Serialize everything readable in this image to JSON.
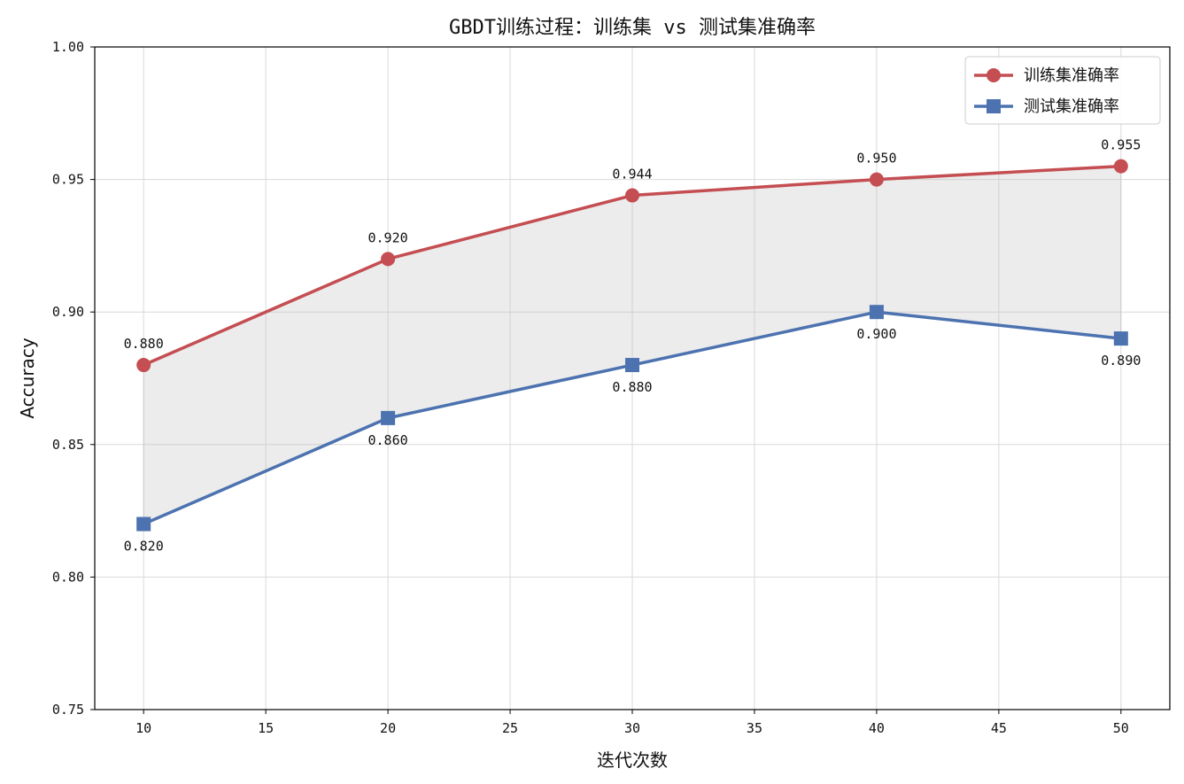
{
  "chart_data": {
    "type": "line",
    "title": "GBDT训练过程：训练集 vs 测试集准确率",
    "xlabel": "迭代次数",
    "ylabel": "Accuracy",
    "xlim": [
      8,
      52
    ],
    "ylim": [
      0.75,
      1.0
    ],
    "x_ticks": [
      10,
      15,
      20,
      25,
      30,
      35,
      40,
      45,
      50
    ],
    "y_ticks": [
      "0.75",
      "0.80",
      "0.85",
      "0.90",
      "0.95",
      "1.00"
    ],
    "grid": true,
    "legend_position": "top-right",
    "fill_between": {
      "color": "#bfbfbf"
    },
    "series": [
      {
        "name": "训练集准确率",
        "color": "#c44e52",
        "marker": "circle",
        "x": [
          10,
          20,
          30,
          40,
          50
        ],
        "values": [
          0.88,
          0.92,
          0.944,
          0.95,
          0.955
        ],
        "labels": [
          "0.880",
          "0.920",
          "0.944",
          "0.950",
          "0.955"
        ],
        "label_side": "above"
      },
      {
        "name": "测试集准确率",
        "color": "#4c72b0",
        "marker": "square",
        "x": [
          10,
          20,
          30,
          40,
          50
        ],
        "values": [
          0.82,
          0.86,
          0.88,
          0.9,
          0.89
        ],
        "labels": [
          "0.820",
          "0.860",
          "0.880",
          "0.900",
          "0.890"
        ],
        "label_side": "below"
      }
    ]
  }
}
